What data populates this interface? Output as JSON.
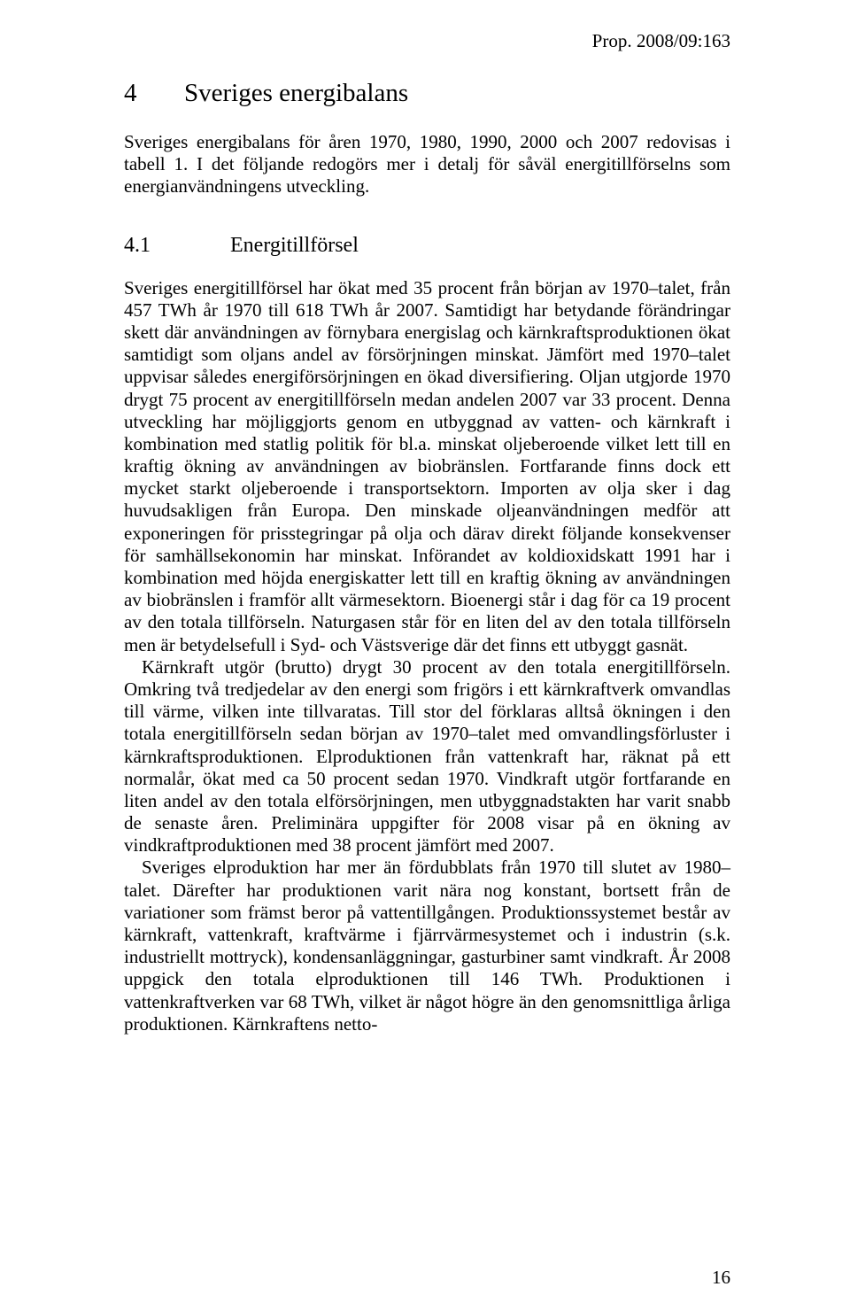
{
  "header": {
    "doc_ref": "Prop. 2008/09:163"
  },
  "section": {
    "number": "4",
    "title": "Sveriges energibalans"
  },
  "intro": "Sveriges energibalans för åren 1970, 1980, 1990, 2000 och 2007 redovisas i tabell 1. I det följande redogörs mer i detalj för såväl energitillförselns som energianvändningens utveckling.",
  "subsection": {
    "number": "4.1",
    "title": "Energitillförsel"
  },
  "paragraphs": {
    "p1": "Sveriges energitillförsel har ökat med 35 procent från början av 1970–talet, från 457 TWh år 1970 till 618 TWh år 2007. Samtidigt har betydande förändringar skett där användningen av förnybara energislag och kärnkraftsproduktionen ökat samtidigt som oljans andel av försörjningen minskat. Jämfört med 1970–talet uppvisar således energiförsörjningen en ökad diversifiering. Oljan utgjorde 1970 drygt 75 procent av energitillförseln medan andelen 2007 var 33 procent. Denna utveckling har möjliggjorts genom en utbyggnad av vatten- och kärnkraft i kombination med statlig politik för bl.a. minskat oljeberoende vilket lett till en kraftig ökning av användningen av biobränslen. Fortfarande finns dock ett mycket starkt oljeberoende i transportsektorn. Importen av olja sker i dag huvudsakligen från Europa. Den minskade oljeanvändningen medför att exponeringen för prisstegringar på olja och därav direkt följande konsekvenser för samhällsekonomin har minskat. Införandet av koldioxidskatt 1991 har i kombination med höjda energiskatter lett till en kraftig ökning av användningen av biobränslen i framför allt värmesektorn. Bioenergi står i dag för ca 19 procent av den totala tillförseln. Naturgasen står för en liten del av den totala tillförseln men är betydelsefull i Syd- och Västsverige där det finns ett utbyggt gasnät.",
    "p2": "Kärnkraft utgör (brutto) drygt 30 procent av den totala energitillförseln. Omkring två tredjedelar av den energi som frigörs i ett kärnkraftverk omvandlas till värme, vilken inte tillvaratas. Till stor del förklaras alltså ökningen i den totala energitillförseln sedan början av 1970–talet med omvandlingsförluster i kärnkraftsproduktionen. Elproduktionen från vattenkraft har, räknat på ett normalår, ökat med ca 50 procent sedan 1970. Vindkraft utgör fortfarande en liten andel av den totala elförsörjningen, men utbyggnadstakten har varit snabb de senaste åren. Preliminära uppgifter för 2008 visar på en ökning av vindkraftproduktionen med 38 procent jämfört med 2007.",
    "p3": "Sveriges elproduktion har mer än fördubblats från 1970 till slutet av 1980–talet. Därefter har produktionen varit nära nog konstant, bortsett från de variationer som främst beror på vattentillgången. Produktionssystemet består av kärnkraft, vattenkraft, kraftvärme i fjärrvärmesystemet och i industrin (s.k. industriellt mottryck), kondensanläggningar, gasturbiner samt vindkraft. År 2008 uppgick den totala elproduktionen till 146 TWh. Produktionen i vattenkraftverken var 68 TWh, vilket är något högre än den genomsnittliga årliga produktionen. Kärnkraftens netto-"
  },
  "page_number": "16"
}
